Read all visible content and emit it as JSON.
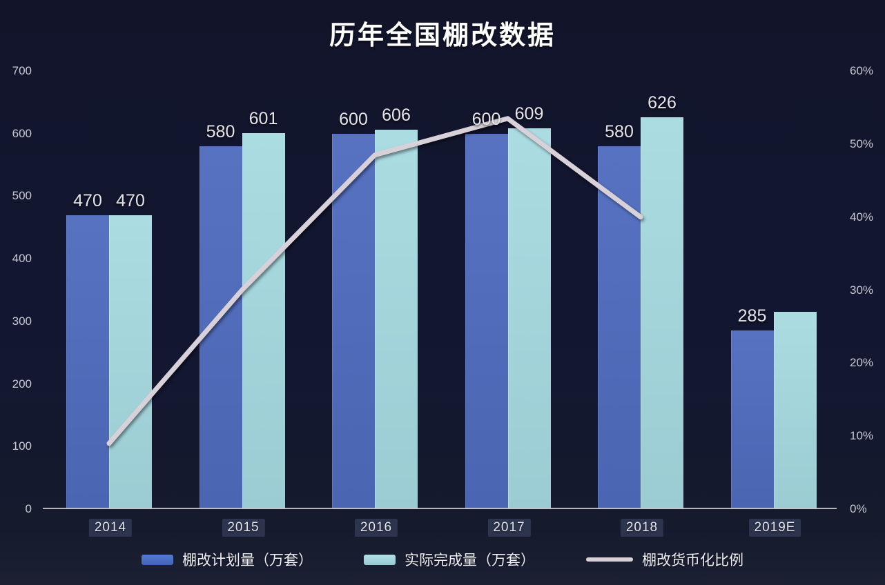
{
  "title": "历年全国棚改数据",
  "colors": {
    "background": "#131830",
    "planned_bar": "#4c6ab8",
    "actual_bar": "#a4d5db",
    "trend_line": "#d9d1d9",
    "axis_text": "#c9cbd4",
    "value_text": "#e5e4e8"
  },
  "chart_data": {
    "type": "bar",
    "subtype": "grouped-bars-with-line",
    "title": "历年全国棚改数据",
    "categories": [
      "2014",
      "2015",
      "2016",
      "2017",
      "2018",
      "2019E"
    ],
    "bar_series": [
      {
        "name": "棚改计划量（万套）",
        "values": [
          470,
          580,
          600,
          600,
          580,
          285
        ],
        "labels": [
          "470",
          "580",
          "600",
          "600",
          "580",
          "285"
        ]
      },
      {
        "name": "实际完成量（万套）",
        "values": [
          470,
          601,
          606,
          609,
          626,
          315
        ],
        "labels": [
          "470",
          "601",
          "606",
          "609",
          "626",
          null
        ]
      }
    ],
    "line_series": {
      "name": "棚改货币化比例",
      "axis": "right",
      "values_pct": [
        9,
        30,
        48.5,
        53.5,
        40,
        null
      ]
    },
    "left_axis": {
      "min": 0,
      "max": 700,
      "ticks": [
        "0",
        "100",
        "200",
        "300",
        "400",
        "500",
        "600",
        "700"
      ]
    },
    "right_axis": {
      "min": 0,
      "max": 60,
      "ticks": [
        "0%",
        "10%",
        "20%",
        "30%",
        "40%",
        "50%",
        "60%"
      ]
    },
    "grid": false,
    "legend_position": "bottom",
    "legend": [
      "棚改计划量（万套）",
      "实际完成量（万套）",
      "棚改货币化比例"
    ]
  }
}
